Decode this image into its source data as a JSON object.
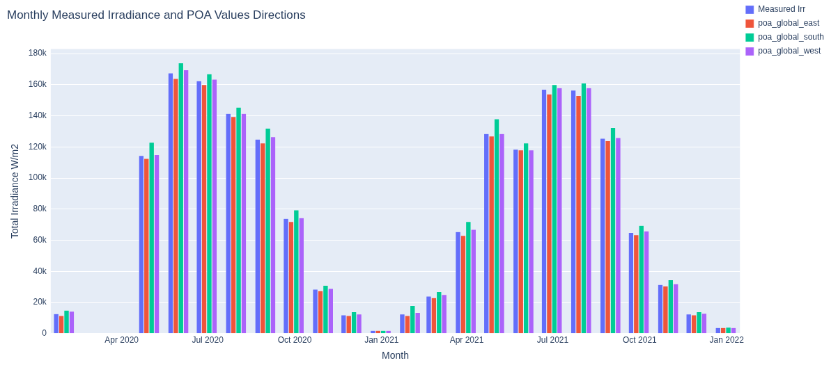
{
  "chart_data": {
    "type": "bar",
    "title": "Monthly Measured Irradiance and POA Values Directions",
    "xlabel": "Month",
    "ylabel": "Total Irradiance W/m2",
    "x": [
      "2020-01-31",
      "2020-02-29",
      "2020-03-31",
      "2020-04-30",
      "2020-05-31",
      "2020-06-30",
      "2020-07-31",
      "2020-08-31",
      "2020-09-30",
      "2020-10-31",
      "2020-11-30",
      "2020-12-31",
      "2021-01-31",
      "2021-02-28",
      "2021-03-31",
      "2021-04-30",
      "2021-05-31",
      "2021-06-30",
      "2021-07-31",
      "2021-08-31",
      "2021-09-30",
      "2021-10-31",
      "2021-11-30",
      "2021-12-31"
    ],
    "series": [
      {
        "name": "Measured Irr",
        "color": "#636efa",
        "values": [
          12800,
          null,
          null,
          114500,
          167500,
          162500,
          141500,
          125000,
          74000,
          28500,
          12000,
          2000,
          12500,
          24000,
          65500,
          128500,
          118500,
          157000,
          156500,
          125500,
          65000,
          31500,
          12500,
          3800
        ]
      },
      {
        "name": "poa_global_east",
        "color": "#ef553b",
        "values": [
          11500,
          null,
          null,
          112500,
          164000,
          160000,
          139500,
          122500,
          72000,
          27500,
          11500,
          2000,
          11500,
          23000,
          63000,
          127000,
          118000,
          154000,
          153000,
          124000,
          63500,
          30500,
          12000,
          3800
        ]
      },
      {
        "name": "poa_global_south",
        "color": "#00cc96",
        "values": [
          15000,
          null,
          null,
          123000,
          174000,
          167000,
          145500,
          132000,
          79500,
          31000,
          14000,
          2000,
          18000,
          27000,
          72000,
          138000,
          122500,
          160000,
          161000,
          132500,
          69500,
          34500,
          14000,
          4000
        ]
      },
      {
        "name": "poa_global_west",
        "color": "#ab63fa",
        "values": [
          14300,
          null,
          null,
          115000,
          169500,
          163500,
          141500,
          126500,
          74500,
          29000,
          12500,
          2000,
          13500,
          25000,
          67000,
          128500,
          118000,
          158000,
          158000,
          126000,
          66000,
          32000,
          13000,
          3800
        ]
      }
    ],
    "xlim": [
      "2020-01-17",
      "2022-01-15"
    ],
    "xticks": [
      {
        "value": "2020-04-01",
        "label": "Apr 2020"
      },
      {
        "value": "2020-07-01",
        "label": "Jul 2020"
      },
      {
        "value": "2020-10-01",
        "label": "Oct 2020"
      },
      {
        "value": "2021-01-01",
        "label": "Jan 2021"
      },
      {
        "value": "2021-04-01",
        "label": "Apr 2021"
      },
      {
        "value": "2021-07-01",
        "label": "Jul 2021"
      },
      {
        "value": "2021-10-01",
        "label": "Oct 2021"
      },
      {
        "value": "2022-01-01",
        "label": "Jan 2022"
      }
    ],
    "ylim": [
      0,
      183000
    ],
    "yticks": [
      {
        "value": 0,
        "label": "0"
      },
      {
        "value": 20000,
        "label": "20k"
      },
      {
        "value": 40000,
        "label": "40k"
      },
      {
        "value": 60000,
        "label": "60k"
      },
      {
        "value": 80000,
        "label": "80k"
      },
      {
        "value": 100000,
        "label": "100k"
      },
      {
        "value": 120000,
        "label": "120k"
      },
      {
        "value": 140000,
        "label": "140k"
      },
      {
        "value": 160000,
        "label": "160k"
      },
      {
        "value": 180000,
        "label": "180k"
      }
    ],
    "grid": "y",
    "legend": "top right"
  }
}
